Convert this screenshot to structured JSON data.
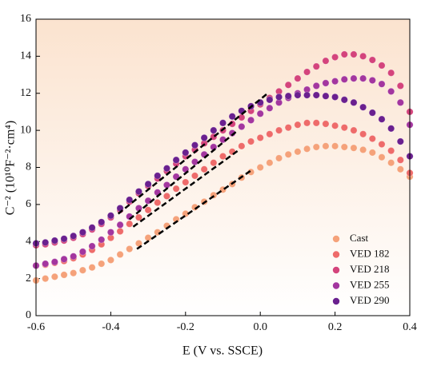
{
  "chart_data": {
    "type": "scatter",
    "xlabel": "E (V vs. SSCE)",
    "ylabel": "C⁻² (10¹⁰F⁻²·cm⁴)",
    "xlim": [
      -0.6,
      0.4
    ],
    "xticks": [
      -0.6,
      -0.4,
      -0.2,
      {
        "value": 0,
        "label": "0.0"
      },
      0.2,
      0.4
    ],
    "ylim": [
      0,
      16
    ],
    "yticks": [
      0,
      2,
      4,
      6,
      8,
      10,
      12,
      14,
      16
    ],
    "legend": "lower right",
    "x": [
      -0.6,
      -0.575,
      -0.55,
      -0.525,
      -0.5,
      -0.475,
      -0.45,
      -0.425,
      -0.4,
      -0.375,
      -0.35,
      -0.325,
      -0.3,
      -0.275,
      -0.25,
      -0.225,
      -0.2,
      -0.175,
      -0.15,
      -0.125,
      -0.1,
      -0.075,
      -0.05,
      -0.025,
      0,
      0.025,
      0.05,
      0.075,
      0.1,
      0.125,
      0.15,
      0.175,
      0.2,
      0.225,
      0.25,
      0.275,
      0.3,
      0.325,
      0.35,
      0.375,
      0.4
    ],
    "series": [
      {
        "name": "Cast",
        "color": "#f5a27a",
        "values": [
          1.9,
          2.0,
          2.1,
          2.2,
          2.3,
          2.45,
          2.6,
          2.8,
          3.0,
          3.3,
          3.6,
          3.9,
          4.2,
          4.5,
          4.85,
          5.2,
          5.5,
          5.85,
          6.15,
          6.5,
          6.8,
          7.1,
          7.45,
          7.75,
          8.0,
          8.25,
          8.5,
          8.7,
          8.85,
          9.0,
          9.1,
          9.15,
          9.15,
          9.1,
          9.05,
          8.95,
          8.8,
          8.55,
          8.25,
          7.9,
          7.5
        ]
      },
      {
        "name": "VED 182",
        "color": "#ee6b6a",
        "values": [
          2.7,
          2.75,
          2.85,
          2.95,
          3.1,
          3.3,
          3.55,
          3.85,
          4.2,
          4.55,
          4.95,
          5.3,
          5.7,
          6.1,
          6.45,
          6.85,
          7.2,
          7.55,
          7.9,
          8.25,
          8.6,
          8.85,
          9.15,
          9.4,
          9.6,
          9.8,
          10.0,
          10.15,
          10.3,
          10.4,
          10.4,
          10.35,
          10.25,
          10.15,
          10.0,
          9.8,
          9.55,
          9.25,
          8.9,
          8.4,
          7.7
        ]
      },
      {
        "name": "VED 218",
        "color": "#d4447c",
        "values": [
          3.8,
          3.85,
          3.95,
          4.05,
          4.2,
          4.4,
          4.65,
          4.95,
          5.3,
          5.7,
          6.15,
          6.6,
          7.0,
          7.4,
          7.8,
          8.2,
          8.6,
          8.95,
          9.3,
          9.65,
          10.0,
          10.35,
          10.7,
          11.05,
          11.4,
          11.75,
          12.1,
          12.45,
          12.8,
          13.15,
          13.45,
          13.75,
          13.95,
          14.1,
          14.1,
          14.0,
          13.8,
          13.5,
          13.1,
          12.4,
          11.0
        ]
      },
      {
        "name": "VED 255",
        "color": "#a3369f",
        "values": [
          2.7,
          2.8,
          2.9,
          3.05,
          3.2,
          3.45,
          3.75,
          4.1,
          4.5,
          4.9,
          5.35,
          5.8,
          6.2,
          6.65,
          7.05,
          7.5,
          7.9,
          8.3,
          8.7,
          9.1,
          9.5,
          9.85,
          10.2,
          10.55,
          10.9,
          11.2,
          11.5,
          11.75,
          12.0,
          12.2,
          12.4,
          12.55,
          12.65,
          12.75,
          12.8,
          12.8,
          12.7,
          12.5,
          12.1,
          11.5,
          10.3
        ]
      },
      {
        "name": "VED 290",
        "color": "#6a208f",
        "values": [
          3.9,
          3.95,
          4.05,
          4.15,
          4.3,
          4.5,
          4.75,
          5.05,
          5.4,
          5.8,
          6.25,
          6.7,
          7.1,
          7.55,
          7.95,
          8.4,
          8.8,
          9.2,
          9.6,
          10.0,
          10.4,
          10.75,
          11.05,
          11.3,
          11.5,
          11.65,
          11.8,
          11.85,
          11.9,
          11.9,
          11.9,
          11.85,
          11.8,
          11.65,
          11.5,
          11.25,
          10.95,
          10.6,
          10.1,
          9.4,
          8.6
        ]
      }
    ],
    "fit_lines": [
      {
        "x": [
          -0.33,
          -0.02
        ],
        "y": [
          3.6,
          7.9
        ]
      },
      {
        "x": [
          -0.34,
          -0.06
        ],
        "y": [
          4.8,
          8.9
        ]
      },
      {
        "x": [
          -0.35,
          -0.06
        ],
        "y": [
          5.2,
          10.0
        ]
      },
      {
        "x": [
          -0.38,
          0.02
        ],
        "y": [
          5.5,
          12.0
        ]
      }
    ]
  }
}
